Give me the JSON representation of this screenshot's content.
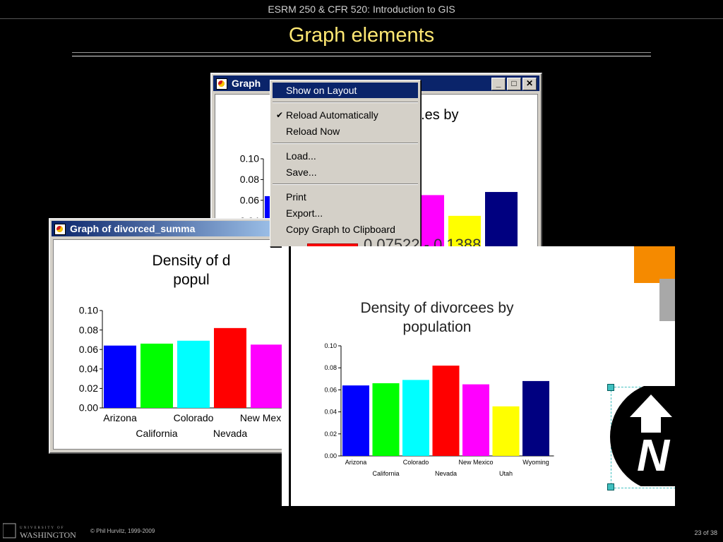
{
  "slide": {
    "course_header": "ESRM 250 & CFR 520: Introduction to GIS",
    "title": "Graph elements",
    "copyright": "© Phil Hurvitz, 1999-2009",
    "page": "23 of 38",
    "logo": {
      "top": "UNIVERSITY OF",
      "bottom": "WASHINGTON"
    }
  },
  "back_window": {
    "title": "Graph",
    "chart_title": "...es by",
    "legend_value": "0.07522 - 0.1388"
  },
  "front_window": {
    "title": "Graph of divorced_summa",
    "chart_title": "Density of d\npopul"
  },
  "context_menu": {
    "items": [
      {
        "label": "Show on Layout",
        "highlighted": true,
        "checked": false
      },
      {
        "label": "Reload Automatically",
        "highlighted": false,
        "checked": true
      },
      {
        "label": "Reload Now",
        "highlighted": false,
        "checked": false
      },
      {
        "label": "Load...",
        "highlighted": false,
        "checked": false
      },
      {
        "label": "Save...",
        "highlighted": false,
        "checked": false
      },
      {
        "label": "Print",
        "highlighted": false,
        "checked": false
      },
      {
        "label": "Export...",
        "highlighted": false,
        "checked": false
      },
      {
        "label": "Copy Graph to Clipboard",
        "highlighted": false,
        "checked": false
      }
    ]
  },
  "layout_panel": {
    "north_arrow_letter": "N"
  },
  "colors": {
    "series": [
      "#0000ff",
      "#00ff00",
      "#00ffff",
      "#ff0000",
      "#ff00ff",
      "#ffff00",
      "#000080"
    ],
    "title_yellow": "#ffe873"
  },
  "chart_data": [
    {
      "type": "bar",
      "title": "Density of divorcees by population",
      "categories": [
        "Arizona",
        "California",
        "Colorado",
        "Nevada",
        "New Mexico",
        "Utah",
        "Wyoming"
      ],
      "values": [
        0.064,
        0.066,
        0.069,
        0.082,
        0.065,
        0.045,
        0.068
      ],
      "ylim": [
        0,
        0.1
      ],
      "yticks": [
        "0.00",
        "0.02",
        "0.04",
        "0.06",
        "0.08",
        "0.10"
      ],
      "xlabel": "",
      "ylabel": "",
      "grid": false,
      "legend": "none"
    }
  ]
}
